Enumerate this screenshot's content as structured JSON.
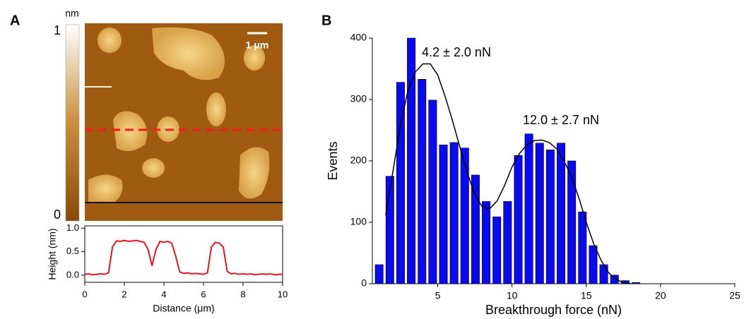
{
  "chart_data": [
    {
      "type": "image",
      "panel": "A",
      "colorbar_label": "nm",
      "clim": [
        0,
        1
      ],
      "cticks": [
        0,
        1
      ],
      "scale_bar": "1 μm",
      "line_color": "#ff1a1a"
    },
    {
      "type": "line",
      "xlabel": "Distance (μm)",
      "ylabel": "Height (nm)",
      "x": [
        0,
        0.2,
        0.4,
        0.6,
        0.8,
        1,
        1.2,
        1.4,
        1.6,
        1.8,
        2,
        2.2,
        2.4,
        2.6,
        2.8,
        3,
        3.2,
        3.4,
        3.6,
        3.8,
        4,
        4.2,
        4.4,
        4.6,
        4.8,
        5,
        5.2,
        5.4,
        5.6,
        5.8,
        6,
        6.2,
        6.4,
        6.6,
        6.8,
        7,
        7.2,
        7.4,
        7.6,
        7.8,
        8,
        8.2,
        8.4,
        8.6,
        8.8,
        9,
        9.2,
        9.4,
        9.6,
        9.8,
        10
      ],
      "series": [
        {
          "color": "#e8141c",
          "values": [
            0.02,
            0.03,
            0.01,
            0.02,
            0.03,
            0.02,
            0.05,
            0.6,
            0.73,
            0.72,
            0.74,
            0.72,
            0.73,
            0.74,
            0.72,
            0.7,
            0.55,
            0.2,
            0.55,
            0.72,
            0.7,
            0.72,
            0.68,
            0.4,
            0.07,
            0.04,
            0.05,
            0.03,
            0.04,
            0.03,
            0.02,
            0.05,
            0.6,
            0.7,
            0.68,
            0.6,
            0.08,
            0.03,
            0.04,
            0.02,
            0.03,
            0.02,
            0.03,
            0.01,
            0.02,
            0.03,
            0.02,
            0.03,
            0.01,
            0.02,
            0.02
          ]
        }
      ],
      "xlim": [
        0,
        10
      ],
      "xticks": [
        0,
        2,
        4,
        6,
        8,
        10
      ],
      "ylim": [
        -0.15,
        1.05
      ],
      "yticks": [
        {
          "value": 0,
          "label": "0.0"
        },
        {
          "value": 0.5,
          "label": "0.5"
        },
        {
          "value": 1,
          "label": "1.0"
        }
      ]
    },
    {
      "type": "histogram",
      "panel": "B",
      "xlabel": "Breakthrough force (nN)",
      "ylabel": "Events",
      "color": "#0a0af0",
      "bins": [
        0.7,
        1.42,
        2.14,
        2.86,
        3.58,
        4.3,
        5.02,
        5.74,
        6.46,
        7.18,
        7.9,
        8.62,
        9.34,
        10.06,
        10.78,
        11.5,
        12.22,
        12.94,
        13.66,
        14.38,
        15.1,
        15.82,
        16.54,
        17.26,
        17.98,
        18.7
      ],
      "values": [
        31,
        175,
        328,
        400,
        333,
        299,
        226,
        230,
        221,
        177,
        134,
        109,
        134,
        209,
        244,
        229,
        218,
        229,
        200,
        117,
        62,
        31,
        14,
        5,
        2
      ],
      "fit": {
        "color": "#000000",
        "x": [
          1.5,
          2,
          2.5,
          3,
          3.5,
          4,
          4.5,
          5,
          5.5,
          6,
          6.5,
          7,
          7.5,
          8,
          8.5,
          9,
          9.5,
          10,
          10.5,
          11,
          11.5,
          12,
          12.5,
          13,
          13.5,
          14,
          14.5,
          15,
          15.5,
          16,
          16.5,
          17,
          17.5,
          18
        ],
        "values": [
          112,
          185,
          260,
          315,
          345,
          358,
          358,
          340,
          305,
          265,
          222,
          180,
          145,
          125,
          122,
          135,
          160,
          190,
          212,
          226,
          233,
          234,
          230,
          220,
          200,
          175,
          140,
          100,
          65,
          38,
          18,
          7,
          2,
          0
        ]
      },
      "annotations": [
        "4.2 ± 2.0 nN",
        "12.0 ± 2.7 nN"
      ],
      "xlim": [
        0.6,
        25
      ],
      "xticks": [
        5,
        10,
        15,
        20,
        25
      ],
      "ylim": [
        0,
        400
      ],
      "yticks": [
        0,
        100,
        200,
        300,
        400
      ]
    }
  ]
}
